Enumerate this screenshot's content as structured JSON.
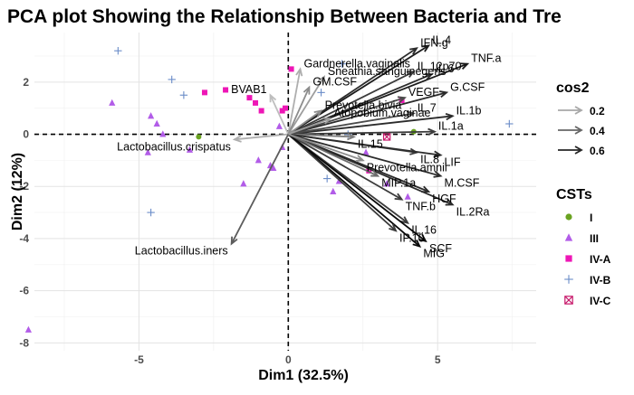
{
  "chart_data": {
    "type": "scatter",
    "title": "PCA plot Showing the Relationship Between Bacteria and Tre",
    "xlabel": "Dim1 (32.5%)",
    "ylabel": "Dim2 (12%)",
    "xlim": [
      -8.5,
      8.3
    ],
    "ylim": [
      -8.3,
      3.9
    ],
    "xticks": [
      -5,
      0,
      5
    ],
    "yticks": [
      -8,
      -6,
      -4,
      -2,
      0,
      2
    ],
    "grid": true,
    "legend_position": "right",
    "legend_cos2": {
      "title": "cos2",
      "entries": [
        {
          "label": "0.2",
          "color": "#a8a8a8"
        },
        {
          "label": "0.4",
          "color": "#666666"
        },
        {
          "label": "0.6",
          "color": "#262626"
        }
      ]
    },
    "legend_groups": {
      "title": "CSTs",
      "entries": [
        {
          "label": "I",
          "color": "#6aa321",
          "shape": "circle"
        },
        {
          "label": "III",
          "color": "#b25ce8",
          "shape": "triangle"
        },
        {
          "label": "IV-A",
          "color": "#ee16b6",
          "shape": "square"
        },
        {
          "label": "IV-B",
          "color": "#6a8cc8",
          "shape": "plus"
        },
        {
          "label": "IV-C",
          "color": "#c7186a",
          "shape": "boxcross"
        }
      ]
    },
    "arrows": [
      {
        "label": "IL.4",
        "x": 4.7,
        "y": 3.4,
        "cos2": 0.65
      },
      {
        "label": "IFN.g",
        "x": 4.3,
        "y": 3.3,
        "cos2": 0.6
      },
      {
        "label": "TNF.a",
        "x": 6.0,
        "y": 2.7,
        "cos2": 0.65
      },
      {
        "label": "IL.6",
        "x": 4.8,
        "y": 2.3,
        "cos2": 0.6
      },
      {
        "label": "IL.12p70",
        "x": 4.2,
        "y": 2.4,
        "cos2": 0.55
      },
      {
        "label": "G.CSF",
        "x": 5.3,
        "y": 1.6,
        "cos2": 0.6
      },
      {
        "label": "VEGF",
        "x": 3.9,
        "y": 1.4,
        "cos2": 0.5
      },
      {
        "label": "IL.1b",
        "x": 5.5,
        "y": 0.7,
        "cos2": 0.6
      },
      {
        "label": "IL.7",
        "x": 4.2,
        "y": 0.8,
        "cos2": 0.5
      },
      {
        "label": "IL.1a",
        "x": 4.9,
        "y": 0.1,
        "cos2": 0.55
      },
      {
        "label": "IL.15",
        "x": 2.2,
        "y": -0.1,
        "cos2": 0.35
      },
      {
        "label": "IL.8",
        "x": 4.3,
        "y": -0.7,
        "cos2": 0.55
      },
      {
        "label": "LIF",
        "x": 5.1,
        "y": -0.8,
        "cos2": 0.6
      },
      {
        "label": "M.CSF",
        "x": 5.1,
        "y": -1.6,
        "cos2": 0.6
      },
      {
        "label": "HGF",
        "x": 4.7,
        "y": -2.2,
        "cos2": 0.6
      },
      {
        "label": "TNF.b",
        "x": 3.8,
        "y": -2.5,
        "cos2": 0.55
      },
      {
        "label": "IL.2Ra",
        "x": 5.5,
        "y": -2.7,
        "cos2": 0.6
      },
      {
        "label": "IL.16",
        "x": 4.0,
        "y": -3.4,
        "cos2": 0.55
      },
      {
        "label": "MIG",
        "x": 4.4,
        "y": -4.3,
        "cos2": 0.7
      },
      {
        "label": "IP.10",
        "x": 3.6,
        "y": -3.7,
        "cos2": 0.55
      },
      {
        "label": "SCF",
        "x": 4.6,
        "y": -4.1,
        "cos2": 0.7
      },
      {
        "label": "MIP.1a",
        "x": 3.0,
        "y": -1.6,
        "cos2": 0.4
      },
      {
        "label": "Prevotella.amnii",
        "x": 2.5,
        "y": -1.0,
        "cos2": 0.3
      },
      {
        "label": "Gardnerella.vaginalis",
        "x": 0.4,
        "y": 2.5,
        "cos2": 0.2
      },
      {
        "label": "Sneathia.sanguinegens",
        "x": 1.2,
        "y": 2.2,
        "cos2": 0.25
      },
      {
        "label": "BVAB1",
        "x": -0.6,
        "y": 1.5,
        "cos2": 0.15
      },
      {
        "label": "GM.CSF",
        "x": 0.7,
        "y": 1.8,
        "cos2": 0.3
      },
      {
        "label": "Prevotella.bivia",
        "x": 1.1,
        "y": 0.9,
        "cos2": 0.3
      },
      {
        "label": "Atopobium.vaginae",
        "x": 1.4,
        "y": 0.6,
        "cos2": 0.25
      },
      {
        "label": "Lactobacillus.crispatus",
        "x": -1.8,
        "y": -0.2,
        "cos2": 0.2
      },
      {
        "label": "Lactobacillus.iners",
        "x": -1.9,
        "y": -4.2,
        "cos2": 0.45
      }
    ],
    "points": [
      {
        "group": "I",
        "x": -3.0,
        "y": -0.1
      },
      {
        "group": "I",
        "x": 4.2,
        "y": 0.1
      },
      {
        "group": "III",
        "x": -5.9,
        "y": 1.2
      },
      {
        "group": "III",
        "x": -4.6,
        "y": 0.7
      },
      {
        "group": "III",
        "x": -4.4,
        "y": 0.4
      },
      {
        "group": "III",
        "x": -4.2,
        "y": 0.0
      },
      {
        "group": "III",
        "x": -4.7,
        "y": -0.7
      },
      {
        "group": "III",
        "x": -3.3,
        "y": -0.6
      },
      {
        "group": "III",
        "x": -1.0,
        "y": -1.0
      },
      {
        "group": "III",
        "x": -0.6,
        "y": -1.2
      },
      {
        "group": "III",
        "x": -0.5,
        "y": -1.3
      },
      {
        "group": "III",
        "x": -1.5,
        "y": -1.9
      },
      {
        "group": "III",
        "x": -0.2,
        "y": -0.5
      },
      {
        "group": "III",
        "x": 1.7,
        "y": -1.8
      },
      {
        "group": "III",
        "x": 1.5,
        "y": -2.2
      },
      {
        "group": "III",
        "x": 2.6,
        "y": -0.7
      },
      {
        "group": "III",
        "x": 3.3,
        "y": -1.9
      },
      {
        "group": "III",
        "x": 4.0,
        "y": -2.4
      },
      {
        "group": "III",
        "x": -8.7,
        "y": -7.5
      },
      {
        "group": "III",
        "x": -0.3,
        "y": 0.3
      },
      {
        "group": "IV-A",
        "x": -2.8,
        "y": 1.6
      },
      {
        "group": "IV-A",
        "x": -2.1,
        "y": 1.7
      },
      {
        "group": "IV-A",
        "x": -1.3,
        "y": 1.4
      },
      {
        "group": "IV-A",
        "x": -1.1,
        "y": 1.2
      },
      {
        "group": "IV-A",
        "x": -0.9,
        "y": 0.9
      },
      {
        "group": "IV-A",
        "x": -0.1,
        "y": 1.0
      },
      {
        "group": "IV-A",
        "x": -0.2,
        "y": 0.9
      },
      {
        "group": "IV-A",
        "x": 0.1,
        "y": 2.5
      },
      {
        "group": "IV-A",
        "x": 3.8,
        "y": 1.3
      },
      {
        "group": "IV-A",
        "x": 2.7,
        "y": -1.4
      },
      {
        "group": "IV-B",
        "x": -5.7,
        "y": 3.2
      },
      {
        "group": "IV-B",
        "x": -3.9,
        "y": 2.1
      },
      {
        "group": "IV-B",
        "x": -3.5,
        "y": 1.5
      },
      {
        "group": "IV-B",
        "x": -4.6,
        "y": -3.0
      },
      {
        "group": "IV-B",
        "x": 7.4,
        "y": 0.4
      },
      {
        "group": "IV-B",
        "x": 1.8,
        "y": 2.7
      },
      {
        "group": "IV-B",
        "x": 1.1,
        "y": 1.6
      },
      {
        "group": "IV-B",
        "x": 1.3,
        "y": -1.7
      },
      {
        "group": "IV-B",
        "x": 2.0,
        "y": 0.0
      },
      {
        "group": "IV-B",
        "x": 0.6,
        "y": 0.1
      },
      {
        "group": "IV-C",
        "x": 3.3,
        "y": -0.1
      }
    ]
  }
}
